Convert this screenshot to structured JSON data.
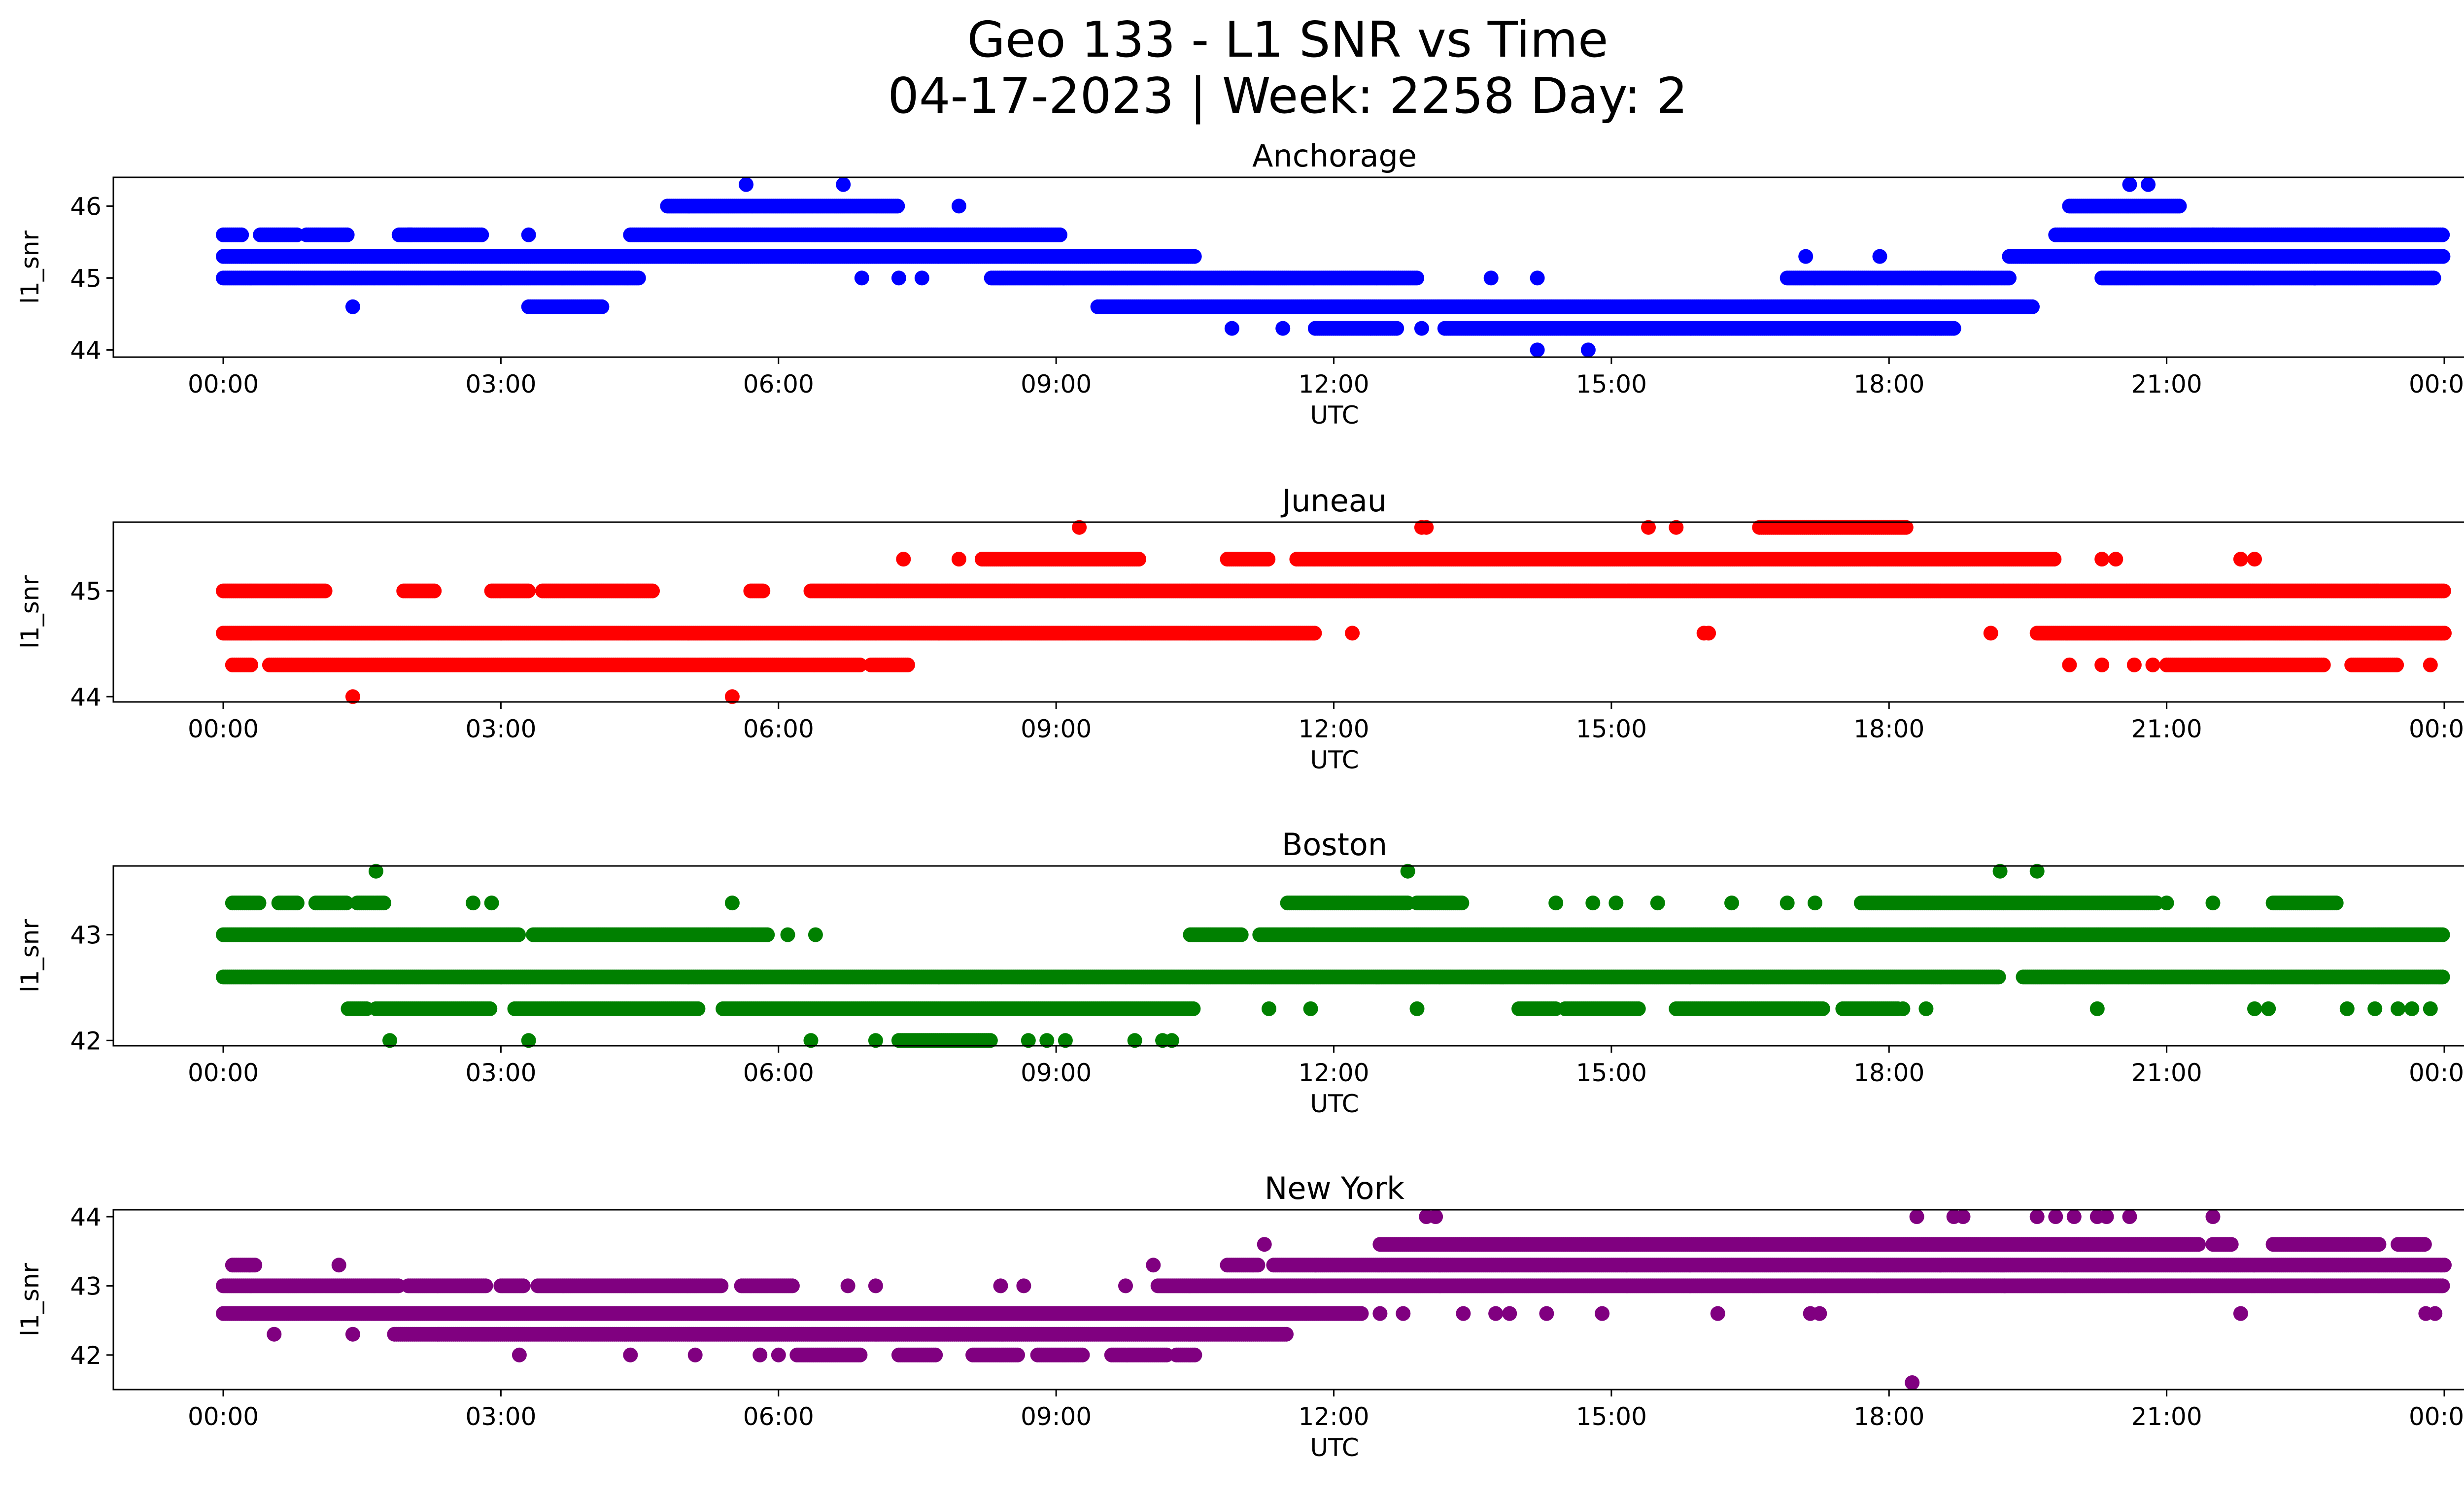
{
  "figure": {
    "title_line1": "Geo 133 - L1 SNR vs Time",
    "title_line2": "04-17-2023 | Week: 2258 Day: 2"
  },
  "chart_data": [
    {
      "type": "scatter",
      "title": "Anchorage",
      "xlabel": "UTC",
      "ylabel": "l1_snr",
      "color": "#0000ff",
      "x_ticks": [
        "00:00",
        "03:00",
        "06:00",
        "09:00",
        "12:00",
        "15:00",
        "18:00",
        "21:00",
        "00:00"
      ],
      "x_range_hours": [
        0,
        24
      ],
      "y_ticks": [
        44,
        45,
        46
      ],
      "ylim": [
        43.9,
        46.4
      ],
      "grid": false,
      "bands": [
        {
          "y": 45.6,
          "segments": [
            [
              0.0,
              0.2
            ],
            [
              0.4,
              0.8
            ],
            [
              0.9,
              1.35
            ],
            [
              1.9,
              2.05
            ],
            [
              2.0,
              2.8
            ],
            [
              4.4,
              9.05
            ],
            [
              19.8,
              24.0
            ]
          ]
        },
        {
          "y": 45.3,
          "segments": [
            [
              0.0,
              10.5
            ],
            [
              19.3,
              24.0
            ]
          ]
        },
        {
          "y": 45.0,
          "segments": [
            [
              0.0,
              4.5
            ],
            [
              8.3,
              12.9
            ],
            [
              16.9,
              19.3
            ],
            [
              20.3,
              23.9
            ]
          ]
        },
        {
          "y": 44.6,
          "segments": [
            [
              3.3,
              4.1
            ],
            [
              9.45,
              19.55
            ]
          ]
        },
        {
          "y": 44.3,
          "segments": [
            [
              11.8,
              12.7
            ],
            [
              13.2,
              18.7
            ]
          ]
        },
        {
          "y": 46.0,
          "segments": [
            [
              4.8,
              7.3
            ],
            [
              19.95,
              21.15
            ]
          ]
        }
      ],
      "points": [
        {
          "x": 1.4,
          "y": 44.6
        },
        {
          "x": 3.3,
          "y": 45.6
        },
        {
          "x": 5.65,
          "y": 46.3
        },
        {
          "x": 6.7,
          "y": 46.3
        },
        {
          "x": 7.95,
          "y": 46.0
        },
        {
          "x": 6.9,
          "y": 45.0
        },
        {
          "x": 7.3,
          "y": 45.0
        },
        {
          "x": 7.55,
          "y": 45.0
        },
        {
          "x": 10.9,
          "y": 44.3
        },
        {
          "x": 11.45,
          "y": 44.3
        },
        {
          "x": 12.4,
          "y": 44.3
        },
        {
          "x": 12.95,
          "y": 44.3
        },
        {
          "x": 13.7,
          "y": 45.0
        },
        {
          "x": 14.2,
          "y": 45.0
        },
        {
          "x": 14.2,
          "y": 44.0
        },
        {
          "x": 14.75,
          "y": 44.0
        },
        {
          "x": 17.1,
          "y": 45.3
        },
        {
          "x": 17.9,
          "y": 45.3
        },
        {
          "x": 18.3,
          "y": 44.3
        },
        {
          "x": 18.5,
          "y": 44.3
        },
        {
          "x": 20.6,
          "y": 46.3
        },
        {
          "x": 20.8,
          "y": 46.3
        },
        {
          "x": 21.5,
          "y": 45.6
        },
        {
          "x": 22.6,
          "y": 45.0
        }
      ]
    },
    {
      "type": "scatter",
      "title": "Juneau",
      "xlabel": "UTC",
      "ylabel": "l1_snr",
      "color": "#ff0000",
      "x_ticks": [
        "00:00",
        "03:00",
        "06:00",
        "09:00",
        "12:00",
        "15:00",
        "18:00",
        "21:00",
        "00:00"
      ],
      "x_range_hours": [
        0,
        24
      ],
      "y_ticks": [
        44,
        45
      ],
      "ylim": [
        43.95,
        45.65
      ],
      "grid": false,
      "bands": [
        {
          "y": 45.0,
          "segments": [
            [
              0.0,
              1.1
            ],
            [
              1.95,
              2.3
            ],
            [
              2.9,
              3.3
            ],
            [
              3.45,
              4.65
            ],
            [
              5.7,
              5.85
            ],
            [
              6.35,
              24.0
            ]
          ]
        },
        {
          "y": 44.6,
          "segments": [
            [
              0.0,
              11.8
            ],
            [
              19.6,
              24.0
            ]
          ]
        },
        {
          "y": 44.3,
          "segments": [
            [
              0.1,
              0.3
            ],
            [
              0.5,
              6.9
            ],
            [
              7.0,
              7.4
            ],
            [
              21.0,
              22.7
            ],
            [
              23.0,
              23.5
            ]
          ]
        },
        {
          "y": 45.3,
          "segments": [
            [
              8.2,
              9.9
            ],
            [
              10.85,
              11.3
            ],
            [
              11.6,
              19.8
            ]
          ]
        },
        {
          "y": 45.6,
          "segments": [
            [
              16.6,
              18.2
            ]
          ]
        }
      ],
      "points": [
        {
          "x": 1.4,
          "y": 44.0
        },
        {
          "x": 5.5,
          "y": 44.0
        },
        {
          "x": 7.35,
          "y": 45.3
        },
        {
          "x": 7.95,
          "y": 45.3
        },
        {
          "x": 9.25,
          "y": 45.6
        },
        {
          "x": 12.2,
          "y": 44.6
        },
        {
          "x": 12.95,
          "y": 45.6
        },
        {
          "x": 13.0,
          "y": 45.6
        },
        {
          "x": 15.4,
          "y": 45.6
        },
        {
          "x": 15.7,
          "y": 45.6
        },
        {
          "x": 16.0,
          "y": 44.6
        },
        {
          "x": 16.05,
          "y": 44.6
        },
        {
          "x": 19.1,
          "y": 44.6
        },
        {
          "x": 19.95,
          "y": 44.3
        },
        {
          "x": 20.3,
          "y": 44.3
        },
        {
          "x": 20.65,
          "y": 44.3
        },
        {
          "x": 20.85,
          "y": 44.3
        },
        {
          "x": 20.3,
          "y": 45.3
        },
        {
          "x": 20.45,
          "y": 45.3
        },
        {
          "x": 21.8,
          "y": 45.3
        },
        {
          "x": 21.95,
          "y": 45.3
        },
        {
          "x": 23.85,
          "y": 44.3
        }
      ]
    },
    {
      "type": "scatter",
      "title": "Boston",
      "xlabel": "UTC",
      "ylabel": "l1_snr",
      "color": "#008000",
      "x_ticks": [
        "00:00",
        "03:00",
        "06:00",
        "09:00",
        "12:00",
        "15:00",
        "18:00",
        "21:00",
        "00:00"
      ],
      "x_range_hours": [
        0,
        24
      ],
      "y_ticks": [
        42,
        43
      ],
      "ylim": [
        41.95,
        43.65
      ],
      "grid": false,
      "bands": [
        {
          "y": 43.0,
          "segments": [
            [
              0.0,
              3.2
            ],
            [
              3.35,
              5.9
            ],
            [
              10.45,
              11.0
            ],
            [
              11.2,
              24.0
            ]
          ]
        },
        {
          "y": 42.6,
          "segments": [
            [
              0.0,
              19.2
            ],
            [
              19.45,
              24.0
            ]
          ]
        },
        {
          "y": 42.3,
          "segments": [
            [
              1.35,
              1.55
            ],
            [
              1.65,
              2.9
            ],
            [
              3.15,
              5.15
            ],
            [
              5.4,
              10.5
            ],
            [
              14.0,
              14.4
            ],
            [
              14.5,
              15.3
            ],
            [
              15.7,
              17.3
            ],
            [
              17.5,
              18.1
            ]
          ]
        },
        {
          "y": 43.3,
          "segments": [
            [
              0.1,
              0.4
            ],
            [
              0.6,
              0.8
            ],
            [
              1.0,
              1.35
            ],
            [
              1.45,
              1.75
            ],
            [
              11.5,
              12.8
            ],
            [
              12.9,
              13.4
            ],
            [
              17.7,
              20.9
            ],
            [
              22.15,
              22.85
            ]
          ]
        },
        {
          "y": 42.0,
          "segments": [
            [
              7.3,
              8.3
            ]
          ]
        }
      ],
      "points": [
        {
          "x": 1.65,
          "y": 43.6
        },
        {
          "x": 1.8,
          "y": 42.0
        },
        {
          "x": 2.7,
          "y": 43.3
        },
        {
          "x": 2.9,
          "y": 43.3
        },
        {
          "x": 3.3,
          "y": 42.0
        },
        {
          "x": 5.5,
          "y": 43.3
        },
        {
          "x": 6.1,
          "y": 43.0
        },
        {
          "x": 6.4,
          "y": 43.0
        },
        {
          "x": 6.35,
          "y": 42.0
        },
        {
          "x": 7.05,
          "y": 42.0
        },
        {
          "x": 8.7,
          "y": 42.0
        },
        {
          "x": 8.9,
          "y": 42.0
        },
        {
          "x": 9.1,
          "y": 42.0
        },
        {
          "x": 9.85,
          "y": 42.0
        },
        {
          "x": 10.15,
          "y": 42.0
        },
        {
          "x": 10.25,
          "y": 42.0
        },
        {
          "x": 11.3,
          "y": 42.3
        },
        {
          "x": 11.75,
          "y": 42.3
        },
        {
          "x": 12.9,
          "y": 42.3
        },
        {
          "x": 12.8,
          "y": 43.6
        },
        {
          "x": 14.4,
          "y": 43.3
        },
        {
          "x": 14.8,
          "y": 43.3
        },
        {
          "x": 15.05,
          "y": 43.3
        },
        {
          "x": 15.5,
          "y": 43.3
        },
        {
          "x": 16.3,
          "y": 43.3
        },
        {
          "x": 16.9,
          "y": 43.3
        },
        {
          "x": 17.2,
          "y": 43.3
        },
        {
          "x": 18.15,
          "y": 42.3
        },
        {
          "x": 18.4,
          "y": 42.3
        },
        {
          "x": 19.2,
          "y": 43.6
        },
        {
          "x": 19.6,
          "y": 43.6
        },
        {
          "x": 20.25,
          "y": 42.3
        },
        {
          "x": 21.0,
          "y": 43.3
        },
        {
          "x": 21.5,
          "y": 43.3
        },
        {
          "x": 21.95,
          "y": 42.3
        },
        {
          "x": 22.1,
          "y": 42.3
        },
        {
          "x": 22.95,
          "y": 42.3
        },
        {
          "x": 23.25,
          "y": 42.3
        },
        {
          "x": 23.5,
          "y": 42.3
        },
        {
          "x": 23.65,
          "y": 42.3
        },
        {
          "x": 23.85,
          "y": 42.3
        }
      ]
    },
    {
      "type": "scatter",
      "title": "New York",
      "xlabel": "UTC",
      "ylabel": "l1_snr",
      "color": "#800080",
      "x_ticks": [
        "00:00",
        "03:00",
        "06:00",
        "09:00",
        "12:00",
        "15:00",
        "18:00",
        "21:00",
        "00:00"
      ],
      "x_range_hours": [
        0,
        24
      ],
      "y_ticks": [
        42,
        43,
        44
      ],
      "ylim": [
        41.5,
        44.1
      ],
      "grid": false,
      "bands": [
        {
          "y": 43.0,
          "segments": [
            [
              0.0,
              1.9
            ],
            [
              2.0,
              2.85
            ],
            [
              3.0,
              3.25
            ],
            [
              3.4,
              5.4
            ],
            [
              5.6,
              6.15
            ],
            [
              10.1,
              24.0
            ]
          ]
        },
        {
          "y": 42.6,
          "segments": [
            [
              0.0,
              12.3
            ]
          ]
        },
        {
          "y": 42.3,
          "segments": [
            [
              1.85,
              11.5
            ]
          ]
        },
        {
          "y": 43.3,
          "segments": [
            [
              0.1,
              0.35
            ],
            [
              10.85,
              11.2
            ],
            [
              11.35,
              24.0
            ]
          ]
        },
        {
          "y": 43.6,
          "segments": [
            [
              12.5,
              21.35
            ],
            [
              21.5,
              21.7
            ],
            [
              22.15,
              23.3
            ],
            [
              23.5,
              23.8
            ]
          ]
        },
        {
          "y": 42.0,
          "segments": [
            [
              6.2,
              6.9
            ],
            [
              7.3,
              7.7
            ],
            [
              8.1,
              8.6
            ],
            [
              8.8,
              9.3
            ],
            [
              9.6,
              10.2
            ],
            [
              10.3,
              10.5
            ]
          ]
        }
      ],
      "points": [
        {
          "x": 0.55,
          "y": 42.3
        },
        {
          "x": 1.25,
          "y": 43.3
        },
        {
          "x": 1.4,
          "y": 42.3
        },
        {
          "x": 3.2,
          "y": 42.0
        },
        {
          "x": 4.4,
          "y": 42.0
        },
        {
          "x": 5.1,
          "y": 42.0
        },
        {
          "x": 5.8,
          "y": 42.0
        },
        {
          "x": 6.0,
          "y": 42.0
        },
        {
          "x": 6.75,
          "y": 43.0
        },
        {
          "x": 7.05,
          "y": 43.0
        },
        {
          "x": 8.4,
          "y": 43.0
        },
        {
          "x": 8.65,
          "y": 43.0
        },
        {
          "x": 9.75,
          "y": 43.0
        },
        {
          "x": 10.05,
          "y": 43.3
        },
        {
          "x": 11.25,
          "y": 43.6
        },
        {
          "x": 11.7,
          "y": 42.6
        },
        {
          "x": 12.5,
          "y": 42.6
        },
        {
          "x": 12.75,
          "y": 42.6
        },
        {
          "x": 13.0,
          "y": 44.0
        },
        {
          "x": 13.1,
          "y": 44.0
        },
        {
          "x": 13.4,
          "y": 42.6
        },
        {
          "x": 13.75,
          "y": 42.6
        },
        {
          "x": 13.9,
          "y": 42.6
        },
        {
          "x": 14.3,
          "y": 42.6
        },
        {
          "x": 14.9,
          "y": 42.6
        },
        {
          "x": 16.15,
          "y": 42.6
        },
        {
          "x": 17.15,
          "y": 42.6
        },
        {
          "x": 17.25,
          "y": 42.6
        },
        {
          "x": 18.25,
          "y": 41.6
        },
        {
          "x": 18.3,
          "y": 44.0
        },
        {
          "x": 18.7,
          "y": 44.0
        },
        {
          "x": 18.8,
          "y": 44.0
        },
        {
          "x": 19.25,
          "y": 43.0
        },
        {
          "x": 19.6,
          "y": 44.0
        },
        {
          "x": 19.8,
          "y": 44.0
        },
        {
          "x": 20.0,
          "y": 44.0
        },
        {
          "x": 20.25,
          "y": 44.0
        },
        {
          "x": 20.35,
          "y": 44.0
        },
        {
          "x": 20.6,
          "y": 44.0
        },
        {
          "x": 21.5,
          "y": 44.0
        },
        {
          "x": 21.8,
          "y": 42.6
        },
        {
          "x": 23.8,
          "y": 42.6
        },
        {
          "x": 23.9,
          "y": 42.6
        }
      ]
    }
  ]
}
